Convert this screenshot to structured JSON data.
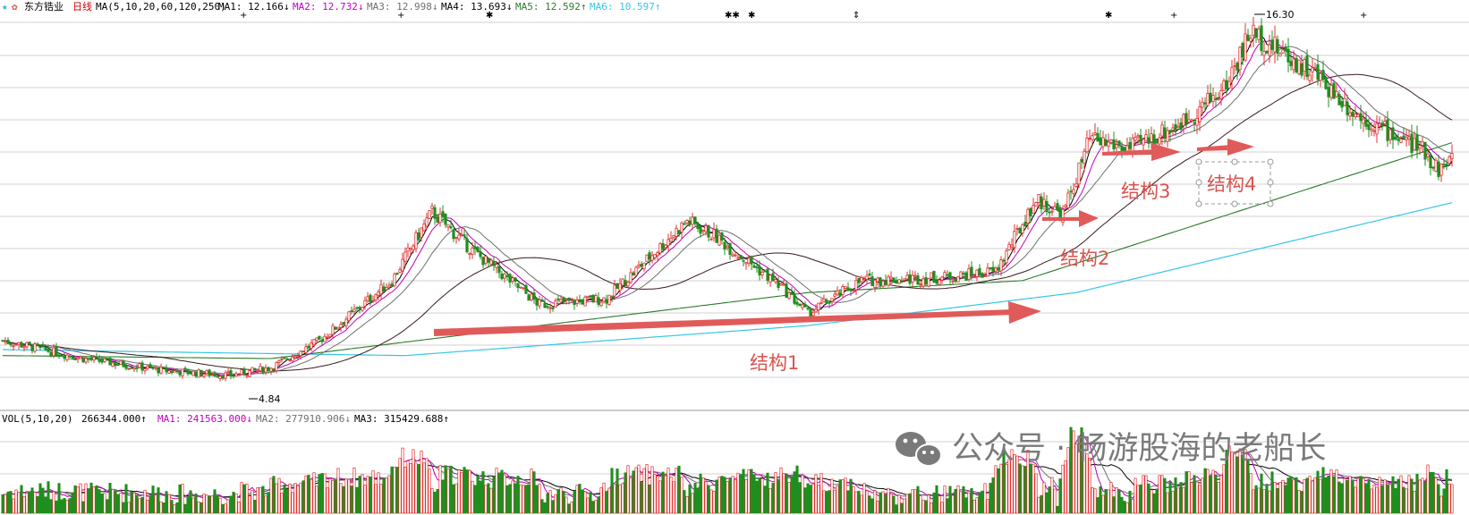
{
  "header": {
    "star_icon": "star-icon",
    "gear_icon": "gear-icon",
    "stock_name": "东方锆业",
    "period": "日线",
    "ma_params": "MA(5,10,20,60,120,250)",
    "items": [
      {
        "text": "MA1: 12.166↓",
        "color": "#000000"
      },
      {
        "text": "MA2: 12.732↓",
        "color": "#c000c0"
      },
      {
        "text": "MA3: 12.998↓",
        "color": "#707070"
      },
      {
        "text": "MA4: 13.693↓",
        "color": "#000000"
      },
      {
        "text": "MA5: 12.592↑",
        "color": "#2d7a2d"
      },
      {
        "text": "MA6: 10.597↑",
        "color": "#33c6e8"
      }
    ]
  },
  "vol_header": {
    "params": "VOL(5,10,20)",
    "vol": "266344.000↑",
    "items": [
      {
        "text": "MA1: 241563.000↓",
        "color": "#c000c0"
      },
      {
        "text": "MA2: 277910.906↓",
        "color": "#707070"
      },
      {
        "text": "MA3: 315429.688↑",
        "color": "#000000"
      }
    ]
  },
  "annotations": {
    "structures": [
      "结构1",
      "结构2",
      "结构3",
      "结构4"
    ],
    "low_label": "4.84",
    "high_label": "16.30"
  },
  "watermark": "公众号 · 畅游股海的老船长",
  "colors": {
    "up": "#e03030",
    "down": "#1f8f1f",
    "arrow": "#e05a5a",
    "ma5": "#000000",
    "ma10": "#c000c0",
    "ma20": "#707070",
    "ma60": "#3a1a1a",
    "ma120": "#2d7a2d",
    "ma250": "#33c6e8",
    "grid": "#d0d0d0"
  },
  "chart_data": {
    "type": "candlestick",
    "price_axis": {
      "min": 4.0,
      "max": 17.0
    },
    "price_path": [
      {
        "day": 0,
        "price": 6.0
      },
      {
        "day": 30,
        "price": 5.4
      },
      {
        "day": 60,
        "price": 5.0
      },
      {
        "day": 85,
        "price": 4.84
      },
      {
        "day": 100,
        "price": 5.1
      },
      {
        "day": 118,
        "price": 6.0
      },
      {
        "day": 145,
        "price": 8.0
      },
      {
        "day": 160,
        "price": 10.3
      },
      {
        "day": 175,
        "price": 9.0
      },
      {
        "day": 200,
        "price": 7.2
      },
      {
        "day": 225,
        "price": 7.4
      },
      {
        "day": 255,
        "price": 10.0
      },
      {
        "day": 265,
        "price": 9.5
      },
      {
        "day": 290,
        "price": 7.8
      },
      {
        "day": 300,
        "price": 6.9
      },
      {
        "day": 320,
        "price": 8.0
      },
      {
        "day": 350,
        "price": 8.1
      },
      {
        "day": 370,
        "price": 8.3
      },
      {
        "day": 385,
        "price": 10.7
      },
      {
        "day": 395,
        "price": 10.2
      },
      {
        "day": 405,
        "price": 12.7
      },
      {
        "day": 420,
        "price": 12.4
      },
      {
        "day": 440,
        "price": 13.3
      },
      {
        "day": 455,
        "price": 14.4
      },
      {
        "day": 465,
        "price": 16.3
      },
      {
        "day": 480,
        "price": 15.4
      },
      {
        "day": 490,
        "price": 14.8
      },
      {
        "day": 505,
        "price": 13.5
      },
      {
        "day": 530,
        "price": 12.3
      },
      {
        "day": 535,
        "price": 11.7
      },
      {
        "day": 540,
        "price": 12.1
      }
    ],
    "ma250_path": [
      {
        "day": 0,
        "price": 5.7
      },
      {
        "day": 150,
        "price": 5.5
      },
      {
        "day": 300,
        "price": 6.5
      },
      {
        "day": 400,
        "price": 7.6
      },
      {
        "day": 540,
        "price": 10.6
      }
    ],
    "ma120_path": [
      {
        "day": 0,
        "price": 5.5
      },
      {
        "day": 100,
        "price": 5.4
      },
      {
        "day": 200,
        "price": 6.5
      },
      {
        "day": 300,
        "price": 7.6
      },
      {
        "day": 380,
        "price": 8.0
      },
      {
        "day": 540,
        "price": 12.6
      }
    ]
  }
}
